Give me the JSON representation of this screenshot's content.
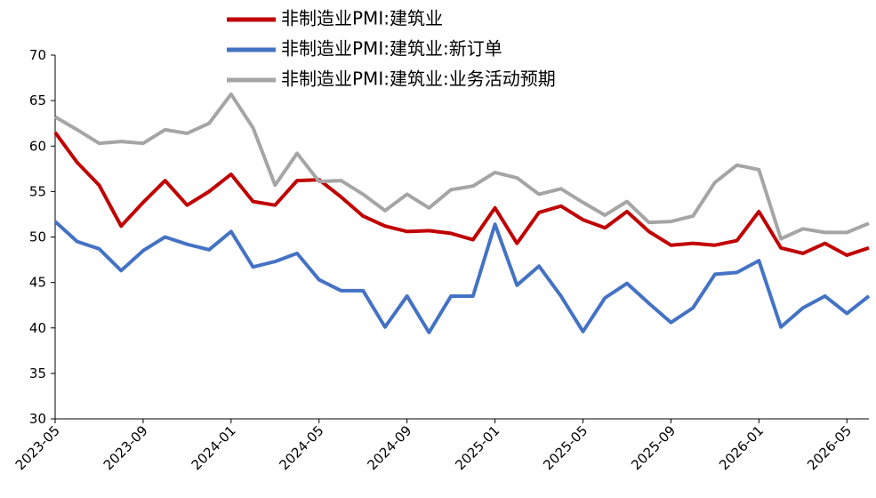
{
  "chart_data": {
    "type": "line",
    "categories": [
      "2023-05",
      null,
      null,
      null,
      "2023-09",
      null,
      null,
      null,
      "2024-01",
      null,
      null,
      null,
      "2024-05",
      null,
      null,
      null,
      "2024-09",
      null,
      null,
      null,
      "2025-01",
      null,
      null,
      null,
      "2025-05",
      null,
      null,
      null,
      "2025-09",
      null,
      null,
      null,
      "2026-01",
      null,
      null,
      null,
      "2026-05",
      null
    ],
    "series": [
      {
        "name": "非制造业PMI:建筑业",
        "color": "#c00000",
        "values": [
          61.5,
          58.2,
          55.7,
          51.2,
          53.8,
          56.2,
          53.5,
          55.0,
          56.9,
          53.9,
          53.5,
          56.2,
          56.3,
          54.4,
          52.3,
          51.2,
          50.6,
          50.7,
          50.4,
          49.7,
          53.2,
          49.3,
          52.7,
          53.4,
          51.9,
          51.0,
          52.8,
          50.6,
          49.1,
          49.3,
          49.1,
          49.6,
          52.8,
          48.8,
          48.2,
          49.3,
          48.0,
          48.8
        ]
      },
      {
        "name": "非制造业PMI:建筑业:新订单",
        "color": "#4472c4",
        "values": [
          51.7,
          49.5,
          48.7,
          46.3,
          48.5,
          50.0,
          49.2,
          48.6,
          50.6,
          46.7,
          47.3,
          48.2,
          45.3,
          44.1,
          44.1,
          40.1,
          43.5,
          39.5,
          43.5,
          43.5,
          51.4,
          44.7,
          46.8,
          43.5,
          39.6,
          43.3,
          44.9,
          42.7,
          40.6,
          42.2,
          45.9,
          46.1,
          47.4,
          40.1,
          42.2,
          43.5,
          41.6,
          43.5
        ]
      },
      {
        "name": "非制造业PMI:建筑业:业务活动预期",
        "color": "#a5a5a5",
        "values": [
          63.2,
          61.8,
          60.3,
          60.5,
          60.3,
          61.8,
          61.4,
          62.5,
          65.7,
          62.0,
          55.7,
          59.2,
          56.1,
          56.2,
          54.7,
          52.9,
          54.7,
          53.2,
          55.2,
          55.6,
          57.1,
          56.5,
          54.7,
          55.3,
          53.8,
          52.4,
          53.9,
          51.6,
          51.7,
          52.3,
          56.0,
          57.9,
          57.4,
          49.8,
          50.9,
          50.5,
          50.5,
          51.5
        ]
      }
    ],
    "ylim": [
      30,
      70
    ],
    "yticks": [
      30,
      35,
      40,
      45,
      50,
      55,
      60,
      65,
      70
    ],
    "grid": false
  }
}
